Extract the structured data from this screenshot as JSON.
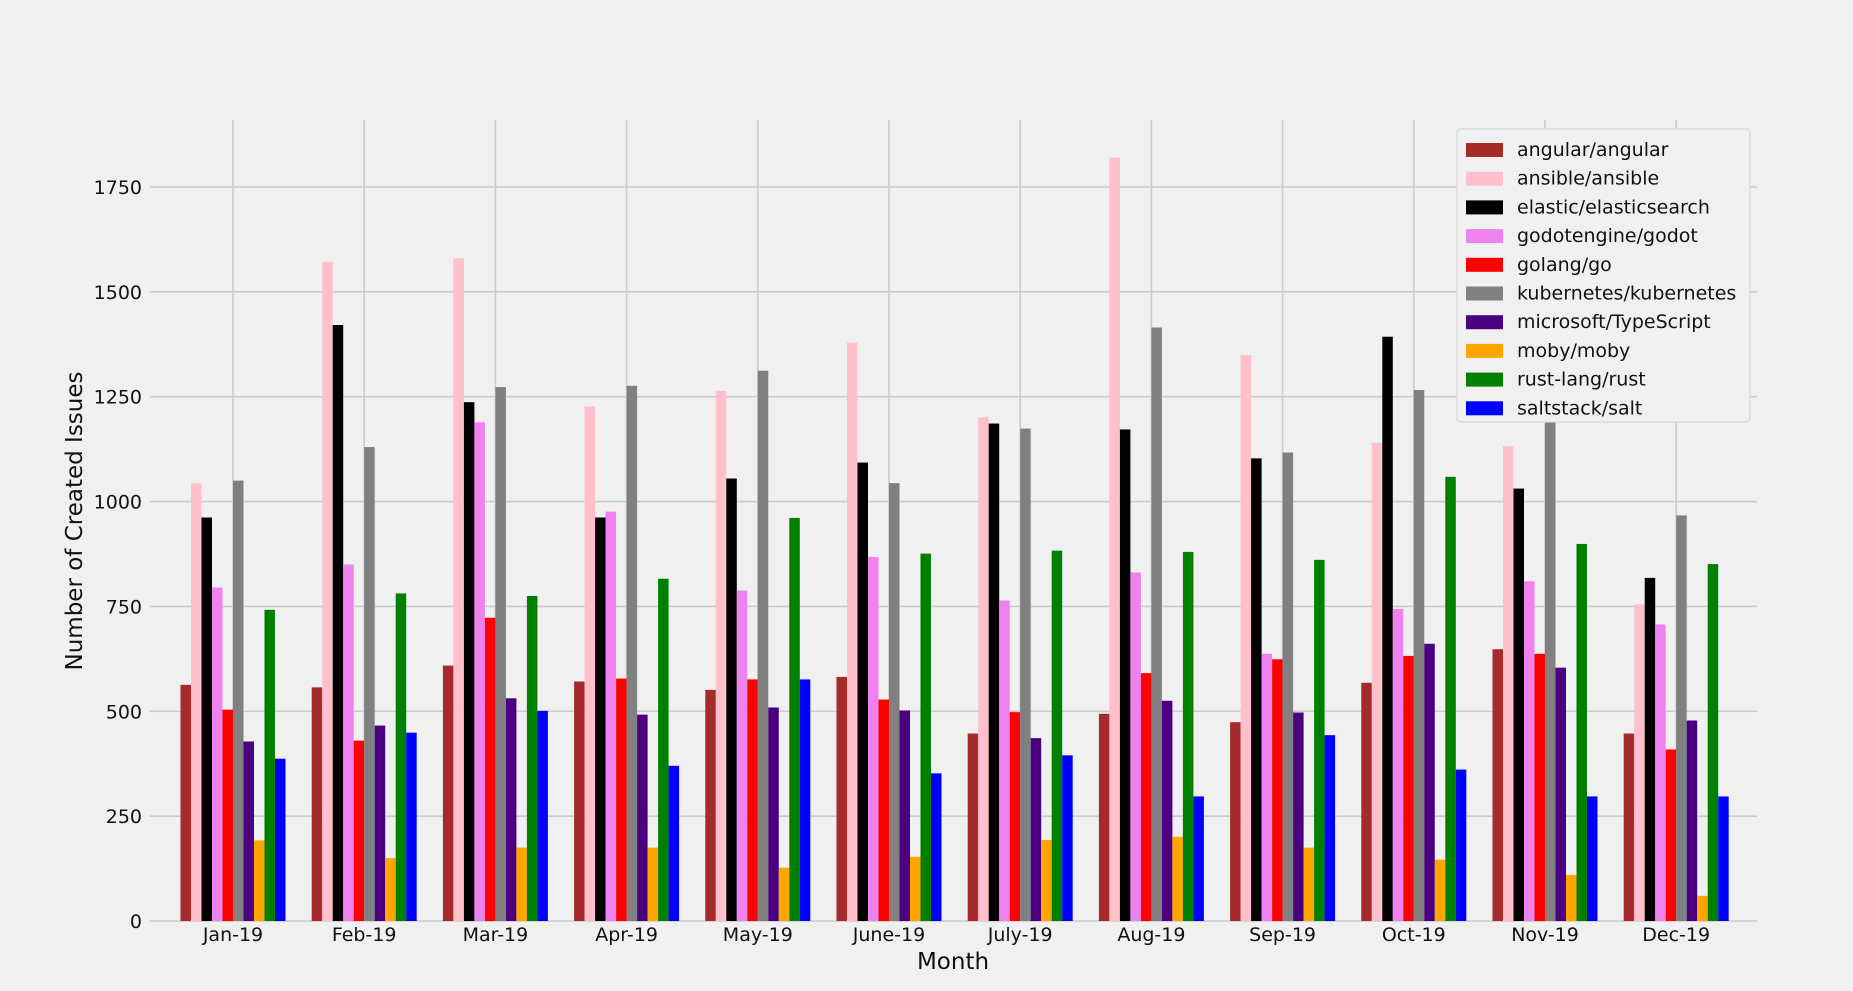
{
  "chart_data": {
    "type": "bar",
    "title": "",
    "xlabel": "Month",
    "ylabel": "Number of Created Issues",
    "ylim": [
      0,
      1900
    ],
    "yticks": [
      0,
      250,
      500,
      750,
      1000,
      1250,
      1500,
      1750
    ],
    "grid": true,
    "legend_position": "top-right",
    "categories": [
      "Jan-19",
      "Feb-19",
      "Mar-19",
      "Apr-19",
      "May-19",
      "June-19",
      "July-19",
      "Aug-19",
      "Sep-19",
      "Oct-19",
      "Nov-19",
      "Dec-19"
    ],
    "series": [
      {
        "name": "angular/angular",
        "color": "#a52a2a",
        "values": [
          563,
          557,
          609,
          571,
          551,
          582,
          447,
          494,
          474,
          568,
          648,
          447
        ]
      },
      {
        "name": "ansible/ansible",
        "color": "#ffc0cb",
        "values": [
          1043,
          1572,
          1580,
          1227,
          1264,
          1379,
          1201,
          1820,
          1349,
          1140,
          1132,
          755
        ]
      },
      {
        "name": "elastic/elasticsearch",
        "color": "#000000",
        "values": [
          962,
          1421,
          1237,
          962,
          1055,
          1093,
          1186,
          1172,
          1103,
          1393,
          1031,
          818
        ]
      },
      {
        "name": "godotengine/godot",
        "color": "#ee82ee",
        "values": [
          795,
          850,
          1189,
          976,
          788,
          868,
          764,
          831,
          637,
          744,
          810,
          707
        ]
      },
      {
        "name": "golang/go",
        "color": "#ff0000",
        "values": [
          504,
          430,
          723,
          578,
          576,
          528,
          498,
          591,
          624,
          632,
          637,
          409
        ]
      },
      {
        "name": "kubernetes/kubernetes",
        "color": "#808080",
        "values": [
          1050,
          1130,
          1273,
          1276,
          1312,
          1044,
          1174,
          1415,
          1117,
          1266,
          1199,
          967
        ]
      },
      {
        "name": "microsoft/TypeScript",
        "color": "#4b0082",
        "values": [
          428,
          466,
          531,
          492,
          509,
          502,
          436,
          525,
          497,
          661,
          604,
          478
        ]
      },
      {
        "name": "moby/moby",
        "color": "#ffa500",
        "values": [
          192,
          150,
          175,
          175,
          127,
          153,
          193,
          201,
          175,
          146,
          110,
          60
        ]
      },
      {
        "name": "rust-lang/rust",
        "color": "#008000",
        "values": [
          742,
          781,
          775,
          816,
          961,
          876,
          883,
          880,
          861,
          1059,
          899,
          851
        ]
      },
      {
        "name": "saltstack/salt",
        "color": "#0000ff",
        "values": [
          387,
          449,
          501,
          370,
          576,
          352,
          395,
          297,
          443,
          361,
          297,
          297
        ]
      }
    ]
  }
}
